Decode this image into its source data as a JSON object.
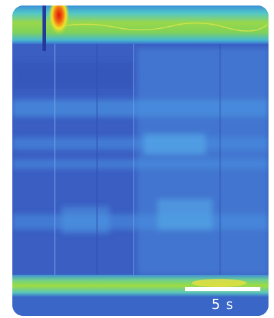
{
  "scale_bar": {
    "label": "5 s"
  }
}
